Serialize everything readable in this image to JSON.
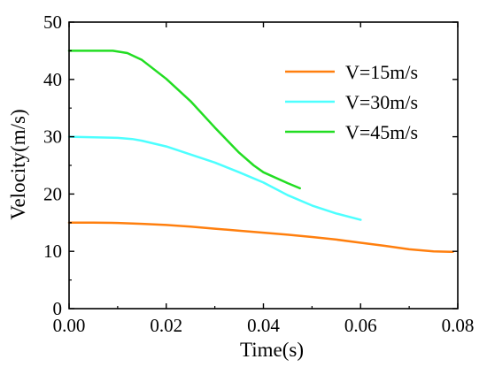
{
  "chart_data": {
    "type": "line",
    "title": "",
    "xlabel": "Time(s)",
    "ylabel": "Velocity(m/s)",
    "xlim": [
      0,
      0.08
    ],
    "ylim": [
      0,
      50
    ],
    "x_ticks": [
      "0.00",
      "0.02",
      "0.04",
      "0.06",
      "0.08"
    ],
    "y_ticks": [
      "0",
      "10",
      "20",
      "30",
      "40",
      "50"
    ],
    "x_tick_values": [
      0,
      0.02,
      0.04,
      0.06,
      0.08
    ],
    "y_tick_values": [
      0,
      10,
      20,
      30,
      40,
      50
    ],
    "grid": false,
    "legend_position": "top-right",
    "series": [
      {
        "name": "V=15m/s",
        "color": "#ff7f0e",
        "x": [
          0,
          0.005,
          0.01,
          0.015,
          0.02,
          0.025,
          0.03,
          0.035,
          0.04,
          0.045,
          0.05,
          0.055,
          0.06,
          0.065,
          0.07,
          0.075,
          0.079
        ],
        "y": [
          15.0,
          15.0,
          14.95,
          14.8,
          14.6,
          14.3,
          13.95,
          13.6,
          13.25,
          12.9,
          12.5,
          12.05,
          11.5,
          10.95,
          10.35,
          10.0,
          9.9
        ]
      },
      {
        "name": "V=30m/s",
        "color": "#4dffff",
        "x": [
          0,
          0.005,
          0.01,
          0.013,
          0.015,
          0.02,
          0.025,
          0.03,
          0.035,
          0.04,
          0.045,
          0.05,
          0.055,
          0.06
        ],
        "y": [
          30.0,
          29.9,
          29.8,
          29.6,
          29.3,
          28.3,
          26.9,
          25.5,
          23.8,
          22.0,
          19.8,
          18.0,
          16.6,
          15.5
        ]
      },
      {
        "name": "V=45m/s",
        "color": "#22dd22",
        "x": [
          0,
          0.005,
          0.009,
          0.012,
          0.015,
          0.02,
          0.025,
          0.03,
          0.035,
          0.038,
          0.04,
          0.045,
          0.0475
        ],
        "y": [
          45.0,
          45.0,
          45.0,
          44.6,
          43.4,
          40.1,
          36.2,
          31.6,
          27.2,
          25.0,
          23.8,
          21.9,
          21.0
        ]
      }
    ]
  }
}
